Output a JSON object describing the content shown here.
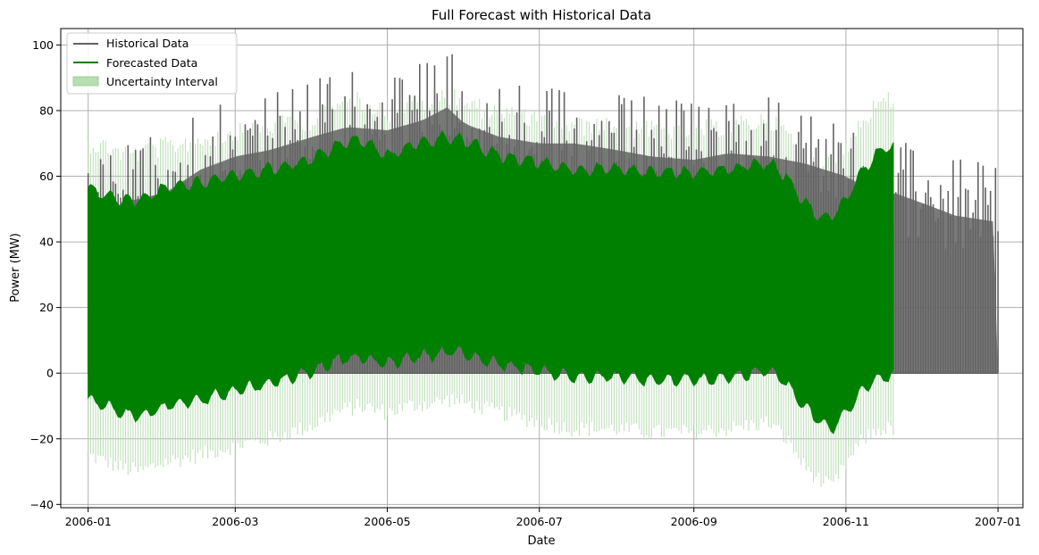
{
  "chart_data": {
    "type": "line",
    "title": "Full Forecast with Historical Data",
    "xlabel": "Date",
    "ylabel": "Power (MW)",
    "xlim": [
      "2005-12-21",
      "2007-01-11"
    ],
    "ylim": [
      -41,
      105
    ],
    "x_ticks": [
      "2006-01-01",
      "2006-03-01",
      "2006-05-01",
      "2006-07-01",
      "2006-09-01",
      "2006-11-01",
      "2007-01-01"
    ],
    "x_tick_labels": [
      "2006-01",
      "2006-03",
      "2006-05",
      "2006-07",
      "2006-09",
      "2006-11",
      "2007-01"
    ],
    "y_ticks": [
      -40,
      -20,
      0,
      20,
      40,
      60,
      80,
      100
    ],
    "y_tick_labels": [
      "−40",
      "−20",
      "0",
      "20",
      "40",
      "60",
      "80",
      "100"
    ],
    "grid": true,
    "legend": "top-left",
    "colors": {
      "historical": "#636363",
      "forecast": "#008000",
      "uncertainty": "#b8dcb3",
      "grid": "#b0b0b0"
    },
    "series": [
      {
        "name": "Historical Data",
        "kind": "line",
        "note": "daily min/max envelope of hourly values",
        "x": [
          "2006-01-01",
          "2006-01-15",
          "2006-02-01",
          "2006-02-15",
          "2006-03-01",
          "2006-03-15",
          "2006-04-01",
          "2006-04-15",
          "2006-05-01",
          "2006-05-15",
          "2006-05-25",
          "2006-06-01",
          "2006-06-15",
          "2006-07-01",
          "2006-07-15",
          "2006-08-01",
          "2006-08-15",
          "2006-09-01",
          "2006-09-15",
          "2006-10-01",
          "2006-10-15",
          "2006-11-01",
          "2006-11-15",
          "2006-11-20",
          "2006-12-01",
          "2006-12-15",
          "2007-01-01"
        ],
        "upper": [
          64,
          70,
          73,
          80,
          84,
          86,
          90,
          93,
          92,
          95,
          99,
          94,
          90,
          88,
          88,
          86,
          84,
          83,
          85,
          84,
          82,
          78,
          72,
          73,
          70,
          66,
          64
        ],
        "lower": [
          0,
          0,
          0,
          0,
          0,
          0,
          0,
          0,
          0,
          0,
          0,
          0,
          0,
          0,
          0,
          0,
          0,
          0,
          0,
          0,
          0,
          0,
          0,
          0,
          0,
          0,
          0
        ]
      },
      {
        "name": "Forecasted Data",
        "kind": "line",
        "x": [
          "2006-01-01",
          "2006-01-08",
          "2006-01-15",
          "2006-01-22",
          "2006-02-01",
          "2006-02-15",
          "2006-03-01",
          "2006-03-15",
          "2006-04-01",
          "2006-04-10",
          "2006-04-20",
          "2006-05-01",
          "2006-05-10",
          "2006-05-20",
          "2006-05-27",
          "2006-06-05",
          "2006-06-15",
          "2006-07-01",
          "2006-07-15",
          "2006-08-01",
          "2006-08-15",
          "2006-09-01",
          "2006-09-15",
          "2006-10-01",
          "2006-10-08",
          "2006-10-15",
          "2006-10-22",
          "2006-10-26",
          "2006-11-01",
          "2006-11-08",
          "2006-11-15",
          "2006-11-20"
        ],
        "upper": [
          56,
          54,
          52,
          53,
          56,
          58,
          60,
          62,
          65,
          69,
          71,
          66,
          69,
          71,
          72,
          69,
          66,
          64,
          62,
          62,
          61,
          61,
          62,
          64,
          60,
          52,
          47,
          47,
          53,
          62,
          68,
          69
        ],
        "lower": [
          -8,
          -10,
          -12,
          -13,
          -10,
          -8,
          -5,
          -3,
          1,
          4,
          5,
          3,
          5,
          6,
          7,
          5,
          3,
          1,
          -1,
          -1,
          -2,
          -2,
          -1,
          1,
          -3,
          -10,
          -15,
          -17,
          -12,
          -4,
          -1,
          0
        ]
      },
      {
        "name": "Uncertainty Interval",
        "kind": "area",
        "x": [
          "2006-01-01",
          "2006-01-08",
          "2006-01-15",
          "2006-01-22",
          "2006-02-01",
          "2006-02-15",
          "2006-03-01",
          "2006-03-15",
          "2006-04-01",
          "2006-04-10",
          "2006-04-20",
          "2006-05-01",
          "2006-05-10",
          "2006-05-20",
          "2006-05-27",
          "2006-06-05",
          "2006-06-15",
          "2006-07-01",
          "2006-07-15",
          "2006-08-01",
          "2006-08-15",
          "2006-09-01",
          "2006-09-15",
          "2006-10-01",
          "2006-10-08",
          "2006-10-15",
          "2006-10-22",
          "2006-10-26",
          "2006-11-01",
          "2006-11-08",
          "2006-11-15",
          "2006-11-20"
        ],
        "upper": [
          73,
          72,
          70,
          70,
          72,
          74,
          76,
          78,
          80,
          84,
          86,
          82,
          84,
          86,
          88,
          84,
          82,
          80,
          78,
          78,
          77,
          77,
          78,
          80,
          76,
          70,
          66,
          66,
          72,
          80,
          86,
          86
        ],
        "lower": [
          -25,
          -27,
          -29,
          -30,
          -27,
          -25,
          -22,
          -20,
          -16,
          -12,
          -10,
          -12,
          -10,
          -9,
          -8,
          -10,
          -12,
          -15,
          -17,
          -17,
          -18,
          -18,
          -17,
          -15,
          -20,
          -28,
          -33,
          -35,
          -28,
          -20,
          -17,
          -17
        ]
      }
    ]
  }
}
